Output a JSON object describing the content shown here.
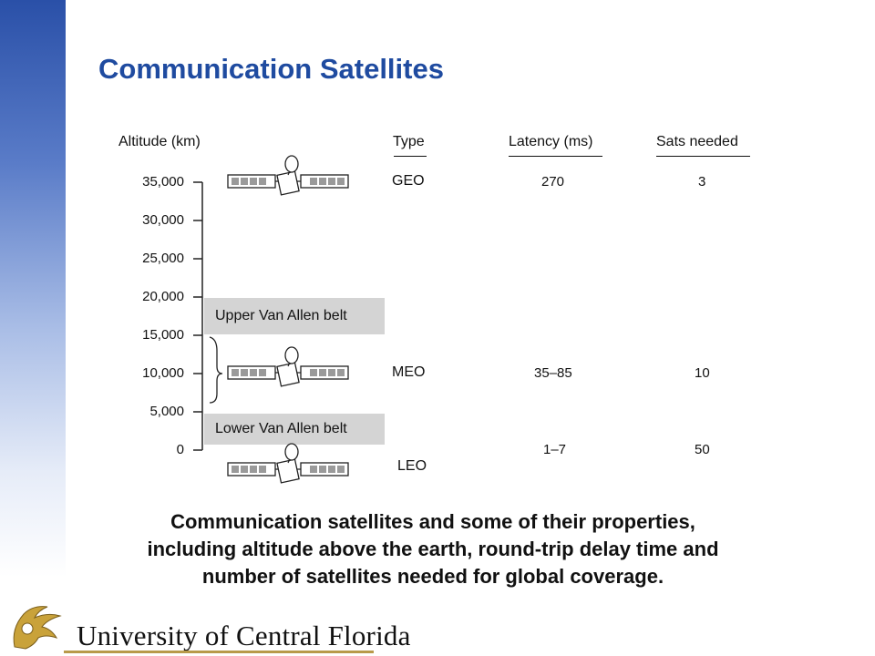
{
  "slide": {
    "title": "Communication Satellites"
  },
  "figure": {
    "headers": {
      "altitude": "Altitude (km)",
      "type": "Type",
      "latency": "Latency (ms)",
      "sats": "Sats needed"
    },
    "altitude_ticks": [
      "35,000",
      "30,000",
      "25,000",
      "20,000",
      "15,000",
      "10,000",
      "5,000",
      "0"
    ],
    "belts": {
      "upper": "Upper Van Allen belt",
      "lower": "Lower Van Allen belt"
    },
    "rows": [
      {
        "type": "GEO",
        "latency": "270",
        "sats": "3"
      },
      {
        "type": "MEO",
        "latency": "35–85",
        "sats": "10"
      },
      {
        "type": "LEO",
        "latency": "1–7",
        "sats": "50"
      }
    ]
  },
  "caption": {
    "line1": "Communication satellites and some of their properties,",
    "line2": "including altitude above the earth, round-trip delay time and",
    "line3": "number of satellites needed for global coverage."
  },
  "logo": {
    "text": "University of Central Florida",
    "colors": {
      "gold": "#c9a23a",
      "line": "#b89a4a"
    }
  }
}
